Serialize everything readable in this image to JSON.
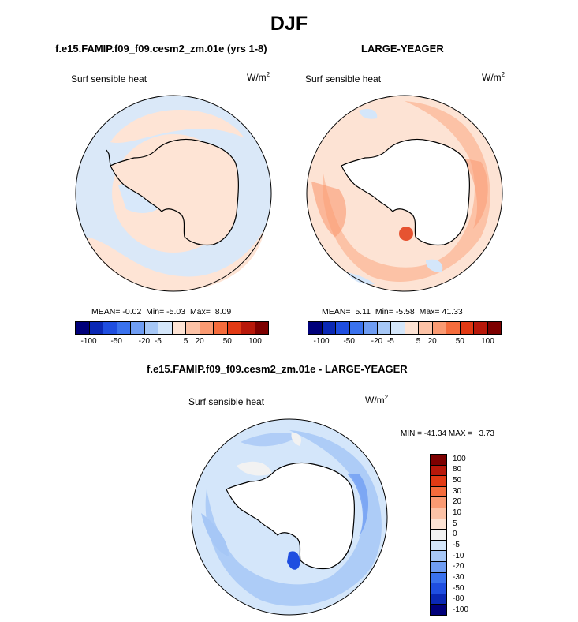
{
  "figure": {
    "title": "DJF"
  },
  "panels": [
    {
      "title": "f.e15.FAMIP.f09_f09.cesm2_zm.01e (yrs 1-8)",
      "variable": "Surf sensible heat",
      "units_base": "W/m",
      "units_exp": "2",
      "mean_label": "MEAN=",
      "mean": "-0.02",
      "min_label": "Min=",
      "min": "-5.03",
      "max_label": "Max=",
      "max": "8.09",
      "fill_color": "#fee4d5",
      "land_color": "#fee4d5"
    },
    {
      "title": "LARGE-YEAGER",
      "variable": "Surf sensible heat",
      "units_base": "W/m",
      "units_exp": "2",
      "mean_label": "MEAN=",
      "mean": "5.11",
      "min_label": "Min=",
      "min": "-5.58",
      "max_label": "Max=",
      "max": "41.33",
      "fill_color": "#fcd2bd",
      "land_color": "#ffffff"
    },
    {
      "title": "f.e15.FAMIP.f09_f09.cesm2_zm.01e - LARGE-YEAGER",
      "variable": "Surf sensible heat",
      "units_base": "W/m",
      "units_exp": "2",
      "minmax_text": "MIN = -41.34 MAX =   3.73",
      "fill_color": "#d8e8fa",
      "land_color": "#ffffff"
    }
  ],
  "colorbar_top": {
    "colors": [
      "#00007a",
      "#0a28b4",
      "#1f4ee0",
      "#3a72ee",
      "#6f9df3",
      "#a6c7f6",
      "#d4e6fa",
      "#fde3d4",
      "#fcc2a6",
      "#fa9a72",
      "#f56c3c",
      "#e23a14",
      "#b8180a",
      "#7d0000"
    ],
    "tick_labels": [
      "-100",
      "-50",
      "-20",
      "-5",
      "5",
      "20",
      "50",
      "100"
    ]
  },
  "colorbar_diff": {
    "colors": [
      "#7d0000",
      "#b8180a",
      "#e23a14",
      "#f56c3c",
      "#fa9a72",
      "#fcc2a6",
      "#fde3d4",
      "#f2f2f2",
      "#d4e6fa",
      "#a6c7f6",
      "#6f9df3",
      "#3a72ee",
      "#1f4ee0",
      "#0a28b4",
      "#00007a"
    ],
    "tick_labels": [
      "100",
      "80",
      "50",
      "30",
      "20",
      "10",
      "5",
      "0",
      "-5",
      "-10",
      "-20",
      "-30",
      "-50",
      "-80",
      "-100"
    ]
  }
}
